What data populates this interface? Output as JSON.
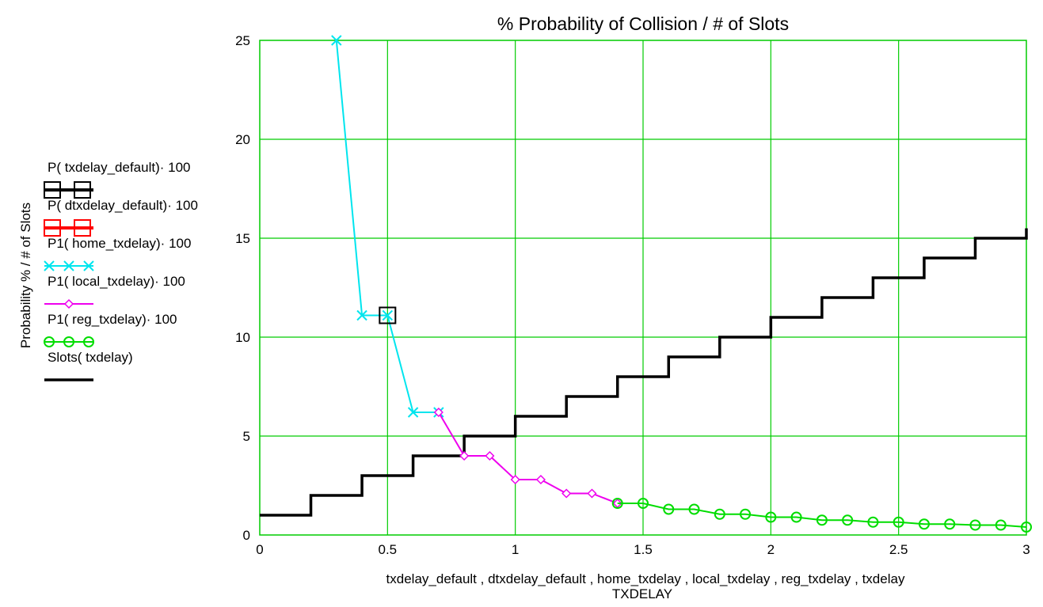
{
  "chart_data": {
    "type": "line",
    "title": "% Probability of Collision / # of Slots",
    "xlabel": "txdelay_default , dtxdelay_default , home_txdelay , local_txdelay , reg_txdelay , txdelay",
    "xlabel2": "TXDELAY",
    "ylabel": "Probability % / # of Slots",
    "xlim": [
      0,
      3
    ],
    "ylim": [
      0,
      25
    ],
    "x_ticks": [
      "0",
      "0.5",
      "1",
      "1.5",
      "2",
      "2.5",
      "3"
    ],
    "y_ticks": [
      "0",
      "5",
      "10",
      "15",
      "20",
      "25"
    ],
    "x_tick_values": [
      0,
      0.5,
      1,
      1.5,
      2,
      2.5,
      3
    ],
    "y_tick_values": [
      0,
      5,
      10,
      15,
      20,
      25
    ],
    "x_grid": [
      0.5,
      1,
      1.5,
      2,
      2.5
    ],
    "y_grid": [
      5,
      10,
      15,
      20
    ],
    "grid": true,
    "grid_color": "#00cc00",
    "legend_position": "left",
    "series": [
      {
        "name": "P( txdelay_default)· 100",
        "color": "#000000",
        "marker": "square",
        "x": [
          0.5
        ],
        "y": [
          11.1
        ]
      },
      {
        "name": "P( dtxdelay_default)· 100",
        "color": "#ff0000",
        "marker": "square",
        "x": [],
        "y": []
      },
      {
        "name": "P1( home_txdelay)· 100",
        "color": "#00e5ee",
        "marker": "x",
        "x": [
          0.3,
          0.4,
          0.5,
          0.6,
          0.7
        ],
        "y": [
          25,
          11.1,
          11.1,
          6.2,
          6.2
        ]
      },
      {
        "name": "P1( local_txdelay)· 100",
        "color": "#ee00ee",
        "marker": "diamond",
        "x": [
          0.7,
          0.8,
          0.9,
          1.0,
          1.1,
          1.2,
          1.3,
          1.4
        ],
        "y": [
          6.2,
          4.0,
          4.0,
          2.8,
          2.8,
          2.1,
          2.1,
          1.6
        ]
      },
      {
        "name": "P1( reg_txdelay)· 100",
        "color": "#00dd00",
        "marker": "circle",
        "x": [
          1.4,
          1.5,
          1.6,
          1.7,
          1.8,
          1.9,
          2.0,
          2.1,
          2.2,
          2.3,
          2.4,
          2.5,
          2.6,
          2.7,
          2.8,
          2.9,
          3.0
        ],
        "y": [
          1.6,
          1.6,
          1.3,
          1.3,
          1.05,
          1.05,
          0.9,
          0.9,
          0.75,
          0.75,
          0.65,
          0.65,
          0.55,
          0.55,
          0.5,
          0.5,
          0.4
        ]
      },
      {
        "name": "Slots( txdelay)",
        "color": "#000000",
        "marker": "none",
        "step": true,
        "x": [
          0,
          0.2,
          0.4,
          0.6,
          0.8,
          1.0,
          1.2,
          1.4,
          1.6,
          1.8,
          2.0,
          2.2,
          2.4,
          2.6,
          2.8,
          3.0
        ],
        "y": [
          1,
          2,
          3,
          4,
          5,
          6,
          7,
          8,
          9,
          10,
          11,
          12,
          13,
          14,
          15,
          15.5
        ]
      }
    ]
  }
}
